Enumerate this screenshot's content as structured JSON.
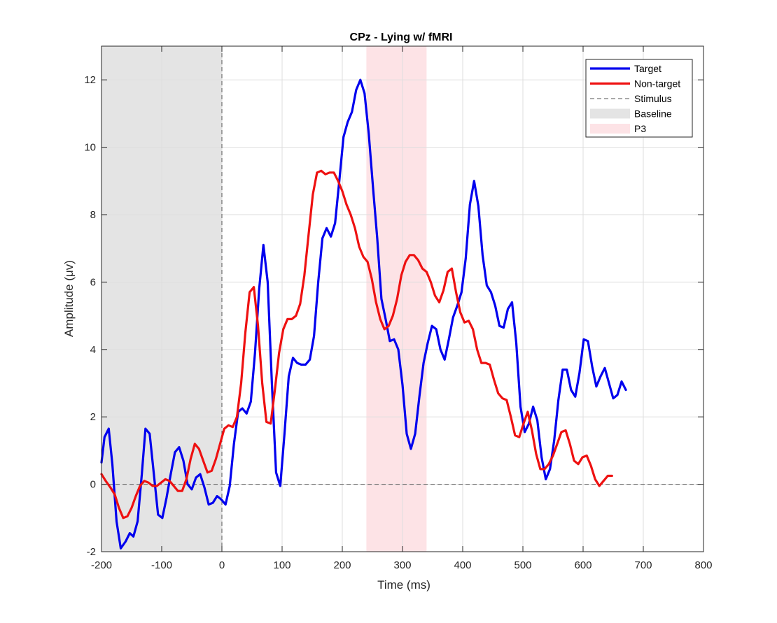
{
  "chart_data": {
    "type": "line",
    "title": "CPz - Lying w/ fMRI",
    "xlabel": "Time (ms)",
    "ylabel": "Amplitude (μv)",
    "xlim": [
      -200,
      800
    ],
    "ylim": [
      -2,
      13
    ],
    "xticks": [
      -200,
      -100,
      0,
      100,
      200,
      300,
      400,
      500,
      600,
      700,
      800
    ],
    "yticks": [
      -2,
      0,
      2,
      4,
      6,
      8,
      10,
      12
    ],
    "grid": true,
    "legend_position": "top-right",
    "baseline_window": [
      -200,
      0
    ],
    "p3_window": [
      240,
      340
    ],
    "stimulus_time": 0,
    "colors": {
      "target": "#0000ee",
      "nontarget": "#ee1111",
      "baseline": "#e4e4e4",
      "p3": "#fde3e6",
      "stimulus": "#555555",
      "grid": "#dedede",
      "axis": "#262626"
    },
    "legend": [
      {
        "label": "Target",
        "kind": "line",
        "color": "#0000ee"
      },
      {
        "label": "Non-target",
        "kind": "line",
        "color": "#ee1111"
      },
      {
        "label": "Stimulus",
        "kind": "dashed",
        "color": "#555555"
      },
      {
        "label": "Baseline",
        "kind": "patch",
        "color": "#e4e4e4"
      },
      {
        "label": "P3",
        "kind": "patch",
        "color": "#fde3e6"
      }
    ],
    "series": [
      {
        "name": "Target",
        "points": [
          [
            -200,
            0.65
          ],
          [
            -195,
            1.4
          ],
          [
            -188,
            1.65
          ],
          [
            -182,
            0.6
          ],
          [
            -175,
            -1.1
          ],
          [
            -168,
            -1.9
          ],
          [
            -160,
            -1.7
          ],
          [
            -153,
            -1.45
          ],
          [
            -147,
            -1.55
          ],
          [
            -140,
            -1.1
          ],
          [
            -133,
            0.3
          ],
          [
            -127,
            1.65
          ],
          [
            -120,
            1.5
          ],
          [
            -113,
            0.3
          ],
          [
            -106,
            -0.9
          ],
          [
            -99,
            -1.0
          ],
          [
            -92,
            -0.4
          ],
          [
            -85,
            0.3
          ],
          [
            -78,
            0.95
          ],
          [
            -71,
            1.1
          ],
          [
            -64,
            0.7
          ],
          [
            -57,
            0.0
          ],
          [
            -50,
            -0.15
          ],
          [
            -43,
            0.2
          ],
          [
            -36,
            0.3
          ],
          [
            -29,
            -0.1
          ],
          [
            -22,
            -0.6
          ],
          [
            -15,
            -0.55
          ],
          [
            -8,
            -0.35
          ],
          [
            -1,
            -0.45
          ],
          [
            6,
            -0.6
          ],
          [
            13,
            -0.05
          ],
          [
            20,
            1.2
          ],
          [
            27,
            2.15
          ],
          [
            34,
            2.25
          ],
          [
            41,
            2.1
          ],
          [
            48,
            2.45
          ],
          [
            55,
            3.9
          ],
          [
            62,
            5.8
          ],
          [
            69,
            7.1
          ],
          [
            76,
            6.0
          ],
          [
            83,
            3.0
          ],
          [
            90,
            0.35
          ],
          [
            97,
            -0.05
          ],
          [
            104,
            1.5
          ],
          [
            111,
            3.2
          ],
          [
            118,
            3.75
          ],
          [
            125,
            3.6
          ],
          [
            132,
            3.55
          ],
          [
            139,
            3.55
          ],
          [
            146,
            3.7
          ],
          [
            153,
            4.4
          ],
          [
            160,
            6.0
          ],
          [
            167,
            7.3
          ],
          [
            174,
            7.6
          ],
          [
            181,
            7.35
          ],
          [
            188,
            7.75
          ],
          [
            195,
            9.0
          ],
          [
            202,
            10.3
          ],
          [
            209,
            10.75
          ],
          [
            216,
            11.05
          ],
          [
            223,
            11.7
          ],
          [
            230,
            12.0
          ],
          [
            237,
            11.6
          ],
          [
            244,
            10.4
          ],
          [
            251,
            8.8
          ],
          [
            258,
            7.3
          ],
          [
            265,
            5.5
          ],
          [
            272,
            4.9
          ],
          [
            279,
            4.25
          ],
          [
            286,
            4.3
          ],
          [
            293,
            4.0
          ],
          [
            300,
            2.95
          ],
          [
            307,
            1.5
          ],
          [
            314,
            1.05
          ],
          [
            321,
            1.5
          ],
          [
            328,
            2.6
          ],
          [
            335,
            3.6
          ],
          [
            342,
            4.2
          ],
          [
            349,
            4.7
          ],
          [
            356,
            4.6
          ],
          [
            363,
            4.0
          ],
          [
            370,
            3.7
          ],
          [
            377,
            4.3
          ],
          [
            384,
            4.95
          ],
          [
            391,
            5.3
          ],
          [
            398,
            5.7
          ],
          [
            405,
            6.7
          ],
          [
            412,
            8.3
          ],
          [
            419,
            9.0
          ],
          [
            426,
            8.25
          ],
          [
            433,
            6.8
          ],
          [
            440,
            5.9
          ],
          [
            447,
            5.7
          ],
          [
            454,
            5.3
          ],
          [
            461,
            4.7
          ],
          [
            468,
            4.65
          ],
          [
            475,
            5.2
          ],
          [
            482,
            5.4
          ],
          [
            489,
            4.2
          ],
          [
            496,
            2.3
          ],
          [
            503,
            1.55
          ],
          [
            510,
            1.8
          ],
          [
            517,
            2.3
          ],
          [
            524,
            1.9
          ],
          [
            531,
            0.8
          ],
          [
            538,
            0.15
          ],
          [
            545,
            0.45
          ],
          [
            552,
            1.3
          ],
          [
            559,
            2.5
          ],
          [
            566,
            3.4
          ],
          [
            573,
            3.4
          ],
          [
            580,
            2.8
          ],
          [
            587,
            2.6
          ],
          [
            594,
            3.3
          ],
          [
            601,
            4.3
          ],
          [
            608,
            4.25
          ],
          [
            615,
            3.5
          ],
          [
            622,
            2.9
          ],
          [
            629,
            3.2
          ],
          [
            636,
            3.45
          ],
          [
            643,
            3.0
          ],
          [
            650,
            2.55
          ],
          [
            657,
            2.65
          ],
          [
            664,
            3.05
          ],
          [
            671,
            2.8
          ]
        ]
      },
      {
        "name": "Non-target",
        "points": [
          [
            -200,
            0.3
          ],
          [
            -193,
            0.1
          ],
          [
            -185,
            -0.1
          ],
          [
            -178,
            -0.3
          ],
          [
            -171,
            -0.7
          ],
          [
            -164,
            -1.0
          ],
          [
            -157,
            -0.95
          ],
          [
            -150,
            -0.7
          ],
          [
            -143,
            -0.35
          ],
          [
            -136,
            -0.05
          ],
          [
            -129,
            0.1
          ],
          [
            -122,
            0.05
          ],
          [
            -115,
            -0.05
          ],
          [
            -108,
            -0.05
          ],
          [
            -101,
            0.05
          ],
          [
            -94,
            0.15
          ],
          [
            -87,
            0.1
          ],
          [
            -80,
            -0.05
          ],
          [
            -73,
            -0.2
          ],
          [
            -66,
            -0.2
          ],
          [
            -59,
            0.15
          ],
          [
            -52,
            0.75
          ],
          [
            -45,
            1.2
          ],
          [
            -38,
            1.05
          ],
          [
            -31,
            0.7
          ],
          [
            -24,
            0.35
          ],
          [
            -17,
            0.4
          ],
          [
            -10,
            0.75
          ],
          [
            -3,
            1.2
          ],
          [
            4,
            1.65
          ],
          [
            11,
            1.75
          ],
          [
            18,
            1.7
          ],
          [
            25,
            2.0
          ],
          [
            32,
            3.0
          ],
          [
            39,
            4.5
          ],
          [
            46,
            5.7
          ],
          [
            53,
            5.85
          ],
          [
            60,
            4.7
          ],
          [
            67,
            3.0
          ],
          [
            74,
            1.85
          ],
          [
            81,
            1.8
          ],
          [
            88,
            2.8
          ],
          [
            95,
            3.9
          ],
          [
            102,
            4.6
          ],
          [
            109,
            4.9
          ],
          [
            116,
            4.9
          ],
          [
            123,
            5.0
          ],
          [
            130,
            5.35
          ],
          [
            137,
            6.2
          ],
          [
            144,
            7.4
          ],
          [
            151,
            8.6
          ],
          [
            158,
            9.25
          ],
          [
            165,
            9.3
          ],
          [
            172,
            9.2
          ],
          [
            179,
            9.25
          ],
          [
            186,
            9.25
          ],
          [
            193,
            9.0
          ],
          [
            200,
            8.7
          ],
          [
            207,
            8.3
          ],
          [
            214,
            8.0
          ],
          [
            221,
            7.6
          ],
          [
            228,
            7.05
          ],
          [
            235,
            6.75
          ],
          [
            242,
            6.6
          ],
          [
            249,
            6.1
          ],
          [
            256,
            5.4
          ],
          [
            263,
            4.9
          ],
          [
            270,
            4.6
          ],
          [
            277,
            4.7
          ],
          [
            284,
            5.0
          ],
          [
            291,
            5.5
          ],
          [
            298,
            6.2
          ],
          [
            305,
            6.6
          ],
          [
            312,
            6.8
          ],
          [
            319,
            6.8
          ],
          [
            326,
            6.65
          ],
          [
            333,
            6.4
          ],
          [
            340,
            6.3
          ],
          [
            347,
            6.0
          ],
          [
            354,
            5.6
          ],
          [
            361,
            5.4
          ],
          [
            368,
            5.75
          ],
          [
            375,
            6.3
          ],
          [
            382,
            6.4
          ],
          [
            389,
            5.7
          ],
          [
            396,
            5.1
          ],
          [
            403,
            4.8
          ],
          [
            410,
            4.85
          ],
          [
            417,
            4.6
          ],
          [
            424,
            4.0
          ],
          [
            431,
            3.6
          ],
          [
            438,
            3.6
          ],
          [
            445,
            3.55
          ],
          [
            452,
            3.1
          ],
          [
            459,
            2.7
          ],
          [
            466,
            2.55
          ],
          [
            473,
            2.5
          ],
          [
            480,
            2.0
          ],
          [
            487,
            1.45
          ],
          [
            494,
            1.4
          ],
          [
            501,
            1.8
          ],
          [
            508,
            2.15
          ],
          [
            515,
            1.6
          ],
          [
            522,
            0.9
          ],
          [
            529,
            0.45
          ],
          [
            536,
            0.45
          ],
          [
            543,
            0.6
          ],
          [
            550,
            0.85
          ],
          [
            557,
            1.2
          ],
          [
            564,
            1.55
          ],
          [
            571,
            1.6
          ],
          [
            578,
            1.2
          ],
          [
            585,
            0.7
          ],
          [
            592,
            0.6
          ],
          [
            599,
            0.8
          ],
          [
            606,
            0.85
          ],
          [
            613,
            0.55
          ],
          [
            620,
            0.15
          ],
          [
            627,
            -0.05
          ],
          [
            634,
            0.1
          ],
          [
            641,
            0.25
          ],
          [
            648,
            0.25
          ]
        ]
      }
    ]
  }
}
